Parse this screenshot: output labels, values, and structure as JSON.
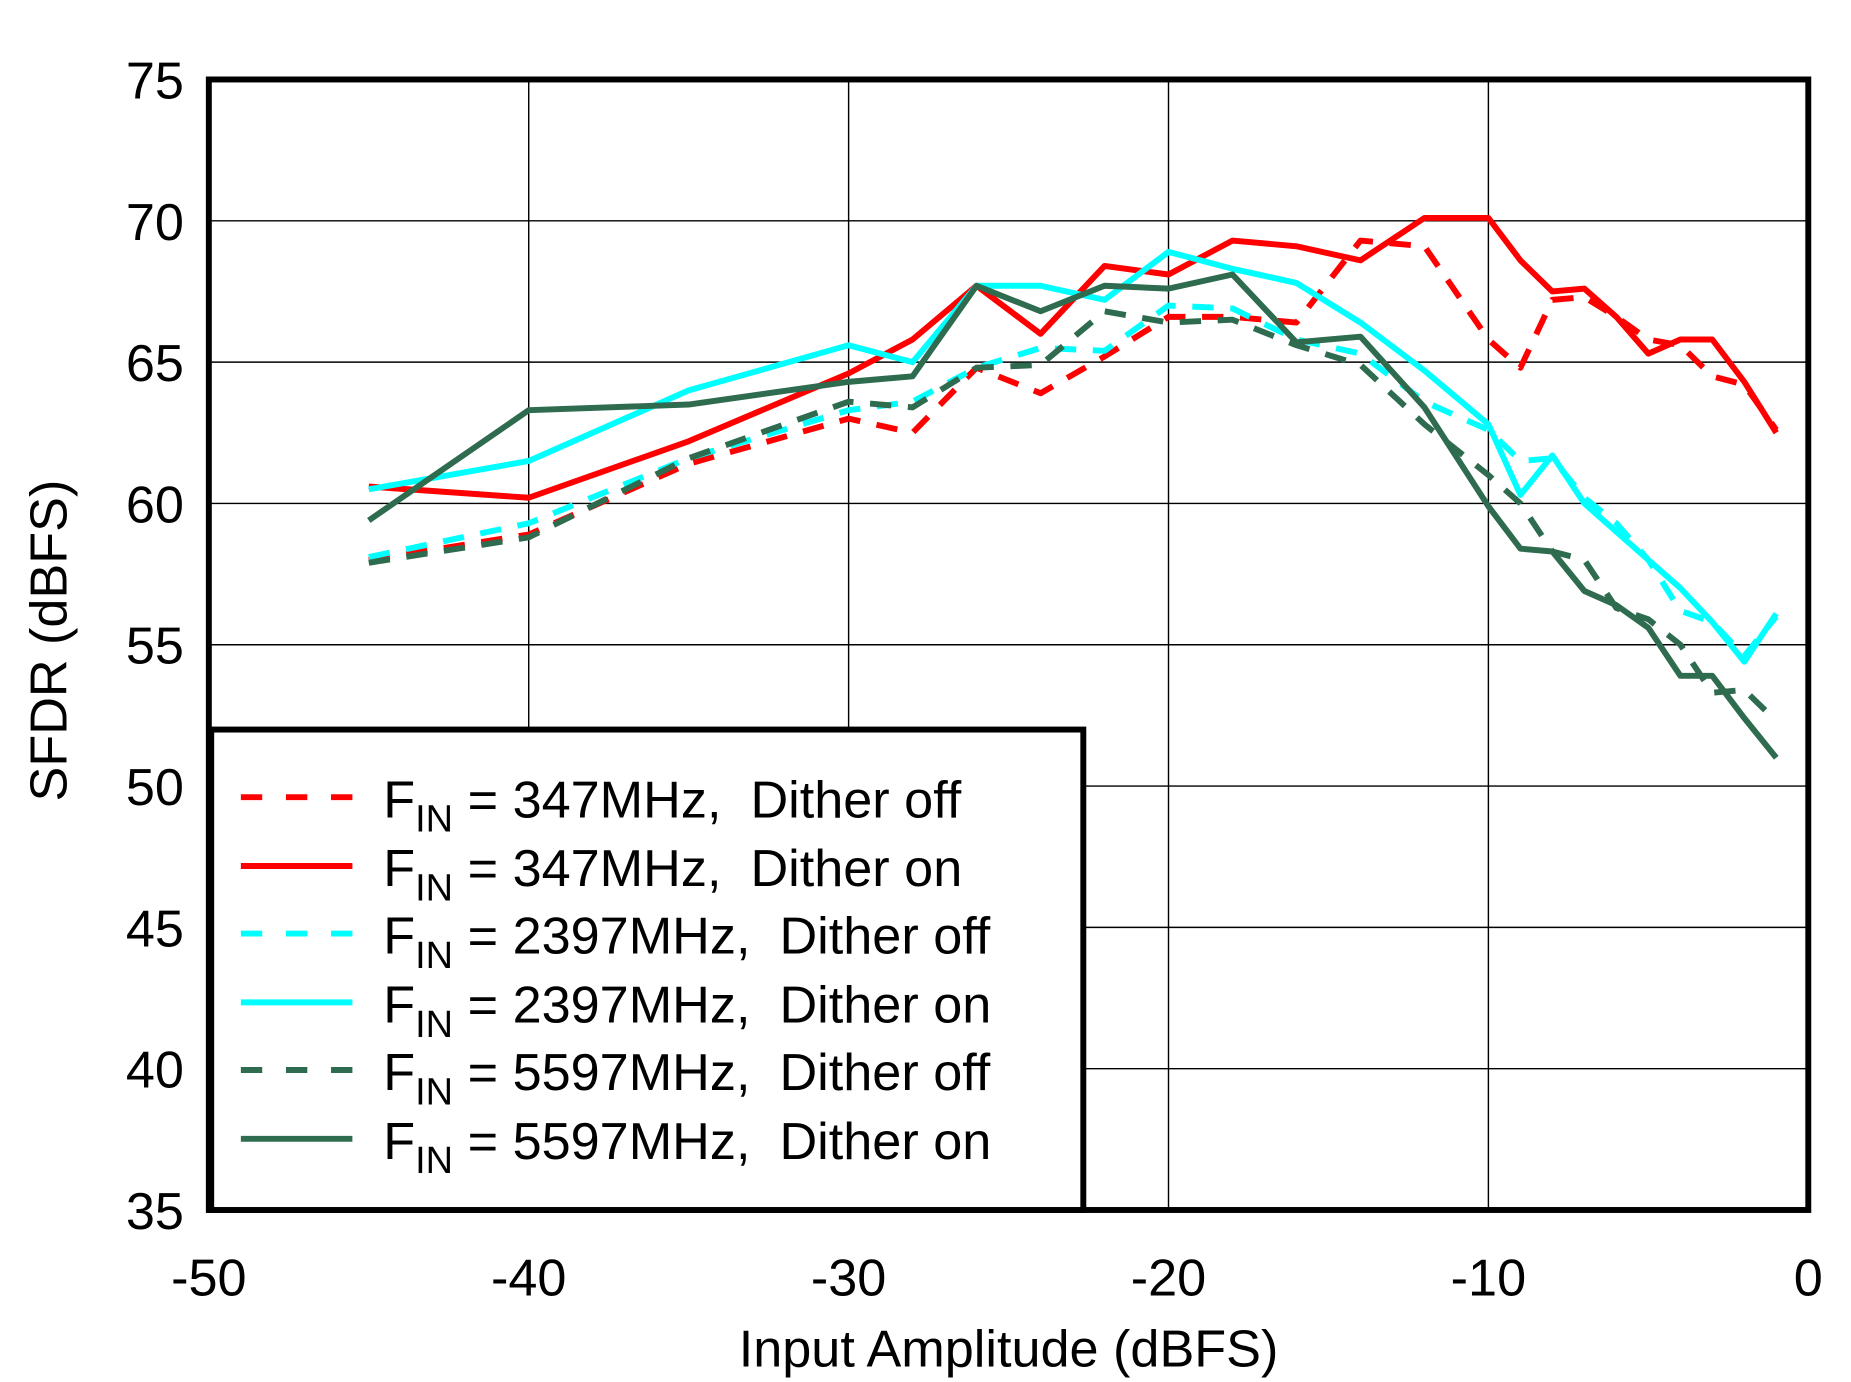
{
  "chart_data": {
    "type": "line",
    "title": "",
    "xlabel": "Input Amplitude  (dBFS)",
    "ylabel": "SFDR  (dBFS)",
    "xlim": [
      -50,
      0
    ],
    "ylim": [
      35,
      75
    ],
    "xticks": [
      -50,
      -40,
      -30,
      -20,
      -10,
      0
    ],
    "yticks": [
      35,
      40,
      45,
      50,
      55,
      60,
      65,
      70,
      75
    ],
    "grid": true,
    "legend_position": "bottom-left",
    "x": [
      -45,
      -40,
      -35,
      -30,
      -28,
      -26,
      -24,
      -22,
      -20,
      -18,
      -16,
      -14,
      -12,
      -10,
      -9,
      -8,
      -7,
      -6,
      -5,
      -4,
      -3,
      -2,
      -1
    ],
    "series": [
      {
        "name_main": "F",
        "name_sub": "IN",
        "name_rest": " = 347MHz,  Dither off",
        "color": "#ff0000",
        "dashed": true,
        "values": [
          58.0,
          58.9,
          61.4,
          63.0,
          62.5,
          64.8,
          63.9,
          65.2,
          66.6,
          66.6,
          66.4,
          69.3,
          69.1,
          65.8,
          64.8,
          67.2,
          67.3,
          66.6,
          65.8,
          65.6,
          64.5,
          64.2,
          62.6
        ]
      },
      {
        "name_main": "F",
        "name_sub": "IN",
        "name_rest": " = 347MHz,  Dither on",
        "color": "#ff0000",
        "dashed": false,
        "values": [
          60.6,
          60.2,
          62.2,
          64.6,
          65.8,
          67.7,
          66.0,
          68.4,
          68.1,
          69.3,
          69.1,
          68.6,
          70.1,
          70.1,
          68.6,
          67.5,
          67.6,
          66.6,
          65.3,
          65.8,
          65.8,
          64.3,
          62.5
        ]
      },
      {
        "name_main": "F",
        "name_sub": "IN",
        "name_rest": " = 2397MHz,  Dither off",
        "color": "#00ffff",
        "dashed": true,
        "values": [
          58.1,
          59.3,
          61.6,
          63.3,
          63.6,
          64.8,
          65.5,
          65.4,
          67.0,
          66.9,
          65.8,
          65.3,
          63.6,
          62.6,
          61.5,
          61.6,
          60.2,
          59.3,
          58.0,
          56.2,
          55.8,
          54.6,
          56.0
        ]
      },
      {
        "name_main": "F",
        "name_sub": "IN",
        "name_rest": " = 2397MHz,  Dither on",
        "color": "#00ffff",
        "dashed": false,
        "values": [
          60.5,
          61.5,
          64.0,
          65.6,
          65.0,
          67.7,
          67.7,
          67.2,
          68.9,
          68.3,
          67.8,
          66.4,
          64.7,
          62.8,
          60.3,
          61.7,
          60.0,
          59.0,
          58.0,
          57.0,
          55.8,
          54.4,
          56.1
        ]
      },
      {
        "name_main": "F",
        "name_sub": "IN",
        "name_rest": " = 5597MHz,  Dither off",
        "color": "#2e6b4f",
        "dashed": true,
        "values": [
          57.9,
          58.8,
          61.6,
          63.6,
          63.4,
          64.8,
          64.9,
          66.8,
          66.4,
          66.5,
          65.6,
          64.9,
          62.8,
          61.0,
          60.0,
          58.3,
          58.0,
          56.3,
          55.9,
          55.0,
          53.3,
          53.4,
          52.3
        ]
      },
      {
        "name_main": "F",
        "name_sub": "IN",
        "name_rest": " = 5597MHz,  Dither on",
        "color": "#2e6b4f",
        "dashed": false,
        "values": [
          59.4,
          63.3,
          63.5,
          64.3,
          64.5,
          67.7,
          66.8,
          67.7,
          67.6,
          68.1,
          65.7,
          65.9,
          63.4,
          59.9,
          58.4,
          58.3,
          56.9,
          56.4,
          55.6,
          53.9,
          53.9,
          52.4,
          51.0
        ]
      }
    ]
  }
}
